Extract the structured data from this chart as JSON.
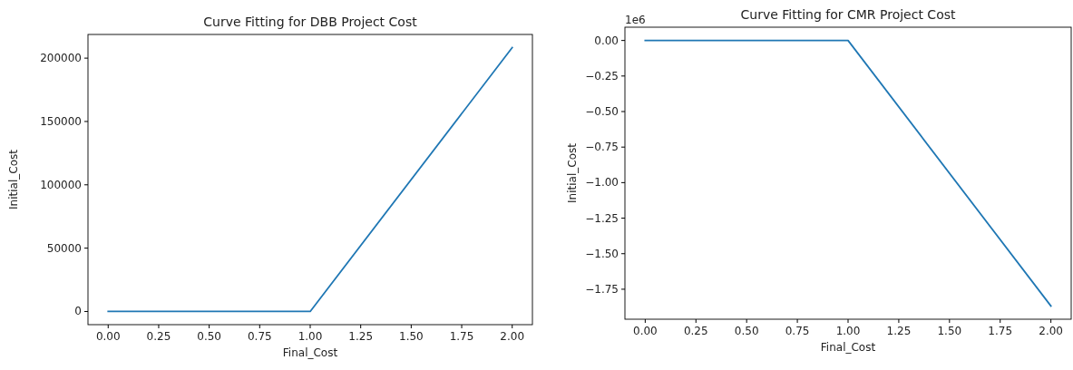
{
  "chart_data": [
    {
      "type": "line",
      "title": "Curve Fitting for DBB Project Cost",
      "xlabel": "Final_Cost",
      "ylabel": "Initial_Cost",
      "x": [
        0,
        1,
        2
      ],
      "series": [
        {
          "color": "#1f77b4",
          "values": [
            0,
            0,
            208300
          ]
        }
      ],
      "xlim": [
        -0.1,
        2.1
      ],
      "xticks": [
        {
          "value": 0,
          "label": "0.00"
        },
        {
          "value": 0.25,
          "label": "0.25"
        },
        {
          "value": 0.5,
          "label": "0.50"
        },
        {
          "value": 0.75,
          "label": "0.75"
        },
        {
          "value": 1,
          "label": "1.00"
        },
        {
          "value": 1.25,
          "label": "1.25"
        },
        {
          "value": 1.5,
          "label": "1.50"
        },
        {
          "value": 1.75,
          "label": "1.75"
        },
        {
          "value": 2,
          "label": "2.00"
        }
      ],
      "ylim": [
        -10400,
        218700
      ],
      "yticks": [
        0,
        50000,
        100000,
        150000,
        200000
      ]
    },
    {
      "type": "line",
      "title": "Curve Fitting for CMR Project Cost",
      "xlabel": "Final_Cost",
      "ylabel": "Initial_Cost",
      "annotations": [
        "1e6"
      ],
      "x": [
        0,
        1,
        2
      ],
      "series": [
        {
          "color": "#1f77b4",
          "values": [
            0,
            0,
            -1.868
          ]
        }
      ],
      "xlim": [
        -0.1,
        2.1
      ],
      "xticks": [
        {
          "value": 0,
          "label": "0.00"
        },
        {
          "value": 0.25,
          "label": "0.25"
        },
        {
          "value": 0.5,
          "label": "0.50"
        },
        {
          "value": 0.75,
          "label": "0.75"
        },
        {
          "value": 1,
          "label": "1.00"
        },
        {
          "value": 1.25,
          "label": "1.25"
        },
        {
          "value": 1.5,
          "label": "1.50"
        },
        {
          "value": 1.75,
          "label": "1.75"
        },
        {
          "value": 2,
          "label": "2.00"
        }
      ],
      "ylim": [
        -1.961,
        0.0934
      ],
      "yticks": [
        {
          "value": 0,
          "label": "0.00"
        },
        {
          "value": -0.25,
          "label": "−0.25"
        },
        {
          "value": -0.5,
          "label": "−0.50"
        },
        {
          "value": -0.75,
          "label": "−0.75"
        },
        {
          "value": -1,
          "label": "−1.00"
        },
        {
          "value": -1.25,
          "label": "−1.25"
        },
        {
          "value": -1.5,
          "label": "−1.50"
        },
        {
          "value": -1.75,
          "label": "−1.75"
        }
      ]
    }
  ]
}
